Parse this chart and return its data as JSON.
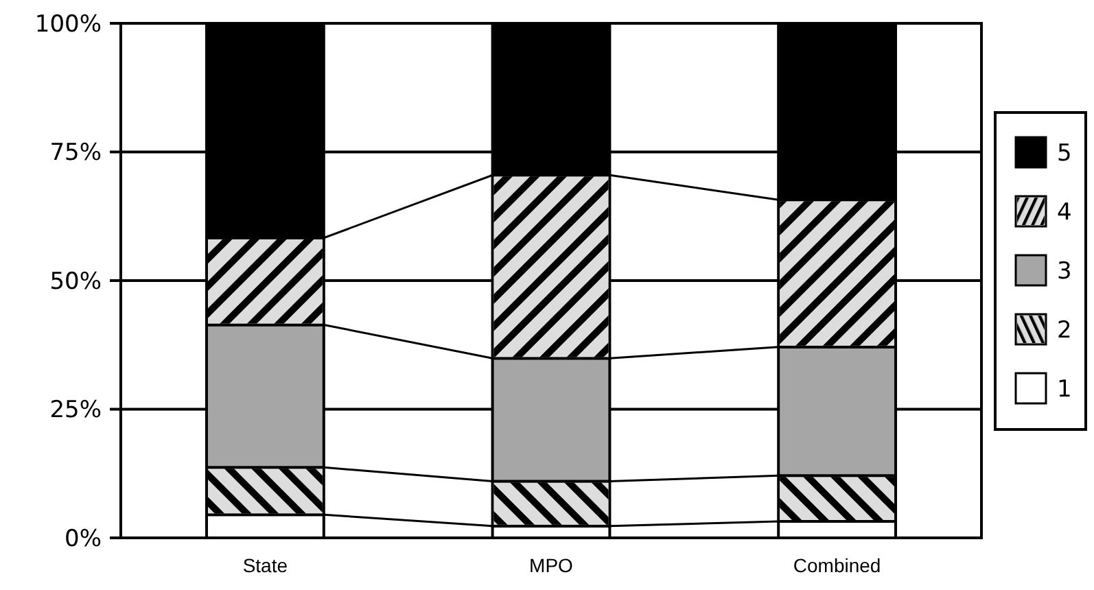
{
  "chart_data": {
    "type": "bar",
    "stacked": true,
    "categories": [
      "State",
      "MPO",
      "Combined"
    ],
    "series": [
      {
        "name": "1",
        "color": "#ffffff",
        "values": [
          4.5,
          2.3,
          3.2
        ]
      },
      {
        "name": "2",
        "color": "#dddddd",
        "values": [
          9.2,
          8.7,
          8.9
        ]
      },
      {
        "name": "3",
        "color": "#a6a6a6",
        "values": [
          27.7,
          23.9,
          25.0
        ]
      },
      {
        "name": "4",
        "color": "#dddddd",
        "values": [
          16.9,
          35.6,
          28.6
        ]
      },
      {
        "name": "5",
        "color": "#000000",
        "values": [
          41.7,
          29.5,
          34.3
        ]
      }
    ],
    "ylim": [
      0,
      100
    ],
    "yticks": [
      {
        "value": 0,
        "label": "0%"
      },
      {
        "value": 25,
        "label": "25%"
      },
      {
        "value": 50,
        "label": "50%"
      },
      {
        "value": 75,
        "label": "75%"
      },
      {
        "value": 100,
        "label": "100%"
      }
    ],
    "grid": "y",
    "legend": "right"
  }
}
